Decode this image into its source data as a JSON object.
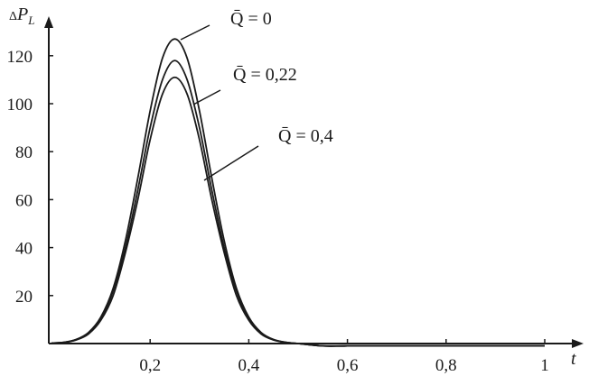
{
  "chart_data": {
    "type": "line",
    "title": "",
    "xlabel": "t",
    "ylabel": "ΔP_L",
    "xlim": [
      0,
      1
    ],
    "ylim": [
      0,
      130
    ],
    "grid": false,
    "legend": "inline-annotations",
    "x_ticks": [
      "0,2",
      "0,4",
      "0,6",
      "0,8",
      "1"
    ],
    "x_tick_values": [
      0.2,
      0.4,
      0.6,
      0.8,
      1
    ],
    "y_ticks": [
      "20",
      "40",
      "60",
      "80",
      "100",
      "120"
    ],
    "y_tick_values": [
      20,
      40,
      60,
      80,
      100,
      120
    ],
    "x": [
      0,
      0.025,
      0.05,
      0.075,
      0.1,
      0.125,
      0.15,
      0.175,
      0.2,
      0.225,
      0.25,
      0.275,
      0.3,
      0.325,
      0.35,
      0.375,
      0.4,
      0.425,
      0.45,
      0.475,
      0.5,
      0.55,
      0.6,
      0.7,
      0.8,
      0.9,
      1
    ],
    "series": [
      {
        "name": "Q̄ = 0",
        "values": [
          0.2,
          0.5,
          1.7,
          4.6,
          11,
          23,
          43,
          69,
          97,
          119,
          127,
          119,
          97,
          69,
          43,
          23,
          11,
          4.6,
          1.7,
          0.5,
          0,
          -1,
          -1,
          -1,
          -1,
          -1,
          -1
        ]
      },
      {
        "name": "Q̄ = 0,22",
        "values": [
          0.2,
          0.5,
          1.6,
          4.3,
          10,
          22,
          40,
          64,
          90,
          110,
          118,
          110,
          90,
          64,
          40,
          22,
          10,
          4.3,
          1.6,
          0.5,
          0,
          -1,
          -1,
          -1,
          -1,
          -1,
          -1
        ]
      },
      {
        "name": "Q̄ = 0,4",
        "values": [
          0.1,
          0.4,
          1.5,
          4,
          9.7,
          20,
          38,
          60,
          85,
          104,
          111,
          104,
          85,
          60,
          38,
          20,
          9.7,
          4,
          1.5,
          0.4,
          0,
          -1,
          -1,
          -1,
          -1,
          -1,
          -1
        ]
      }
    ],
    "line_color": "#1a1a1a"
  }
}
